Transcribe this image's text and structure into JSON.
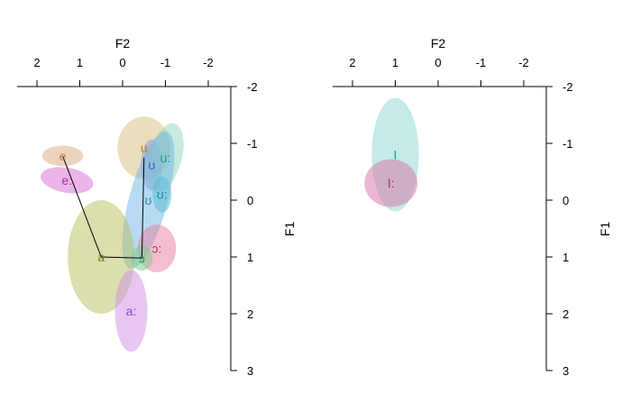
{
  "chart_data": [
    {
      "type": "scatter",
      "xlabel": "F2",
      "ylabel": "F1",
      "x_ticks": [
        "2",
        "1",
        "0",
        "-1",
        "-2"
      ],
      "y_ticks": [
        "-2",
        "-1",
        "0",
        "1",
        "2",
        "3"
      ],
      "x_range": [
        2.5,
        -2.5
      ],
      "y_range": [
        -2,
        3
      ],
      "vowels": [
        {
          "label": "e",
          "x": 1.4,
          "y": -0.78,
          "sx": 0.48,
          "sy": 0.18,
          "angle": 0,
          "color": "#d8a97e",
          "text_color": "#c07a3c"
        },
        {
          "label": "e:",
          "x": 1.3,
          "y": -0.35,
          "sx": 0.62,
          "sy": 0.22,
          "angle": 10,
          "color": "#d96bd3",
          "text_color": "#b32aa9"
        },
        {
          "label": "u",
          "x": -0.5,
          "y": -0.92,
          "sx": 0.62,
          "sy": 0.55,
          "angle": 0,
          "color": "#d6bf7a",
          "text_color": "#b08a10"
        },
        {
          "label": "ʊ",
          "x": -0.68,
          "y": -0.62,
          "sx": 0.25,
          "sy": 0.45,
          "angle": 0,
          "color": "#8c98e0",
          "text_color": "#4a58c8"
        },
        {
          "label": "u:",
          "x": -1.0,
          "y": -0.75,
          "sx": 0.38,
          "sy": 0.62,
          "angle": 15,
          "color": "#8fd6bf",
          "text_color": "#16a07a"
        },
        {
          "label": "ʊ:",
          "x": -0.92,
          "y": -0.1,
          "sx": 0.22,
          "sy": 0.32,
          "angle": 0,
          "color": "#40b8c4",
          "text_color": "#1590a0"
        },
        {
          "label": "ʊ",
          "x": -0.6,
          "y": 0.0,
          "sx": 0.45,
          "sy": 1.25,
          "angle": 15,
          "color": "#6fb6e6",
          "text_color": "#2a80c8"
        },
        {
          "label": "ɔ:",
          "x": -0.8,
          "y": 0.85,
          "sx": 0.45,
          "sy": 0.42,
          "angle": 0,
          "color": "#e87f9f",
          "text_color": "#c2305e"
        },
        {
          "label": "a",
          "x": 0.5,
          "y": 1.0,
          "sx": 0.78,
          "sy": 1.0,
          "angle": 0,
          "color": "#b9be5c",
          "text_color": "#6f7a10"
        },
        {
          "label": "ɔ",
          "x": -0.45,
          "y": 1.02,
          "sx": 0.25,
          "sy": 0.22,
          "angle": 0,
          "color": "#74d08a",
          "text_color": "#2a9a40"
        },
        {
          "label": "a:",
          "x": -0.2,
          "y": 1.95,
          "sx": 0.38,
          "sy": 0.72,
          "angle": 0,
          "color": "#cf8fe6",
          "text_color": "#9a3cc8"
        }
      ],
      "lines": [
        {
          "x": [
            1.4,
            0.5
          ],
          "y": [
            -0.78,
            1.0
          ]
        },
        {
          "x": [
            0.5,
            -0.45
          ],
          "y": [
            1.0,
            1.02
          ]
        },
        {
          "x": [
            -0.45,
            -0.5
          ],
          "y": [
            1.02,
            -0.75
          ]
        }
      ]
    },
    {
      "type": "scatter",
      "xlabel": "F2",
      "ylabel": "F1",
      "x_ticks": [
        "2",
        "1",
        "0",
        "-1",
        "-2"
      ],
      "y_ticks": [
        "-2",
        "-1",
        "0",
        "1",
        "2",
        "3"
      ],
      "x_range": [
        2.5,
        -2.5
      ],
      "y_range": [
        -2,
        3
      ],
      "vowels": [
        {
          "label": "I",
          "x": 1.0,
          "y": -0.8,
          "sx": 0.55,
          "sy": 1.0,
          "angle": 0,
          "color": "#8ad8d2",
          "text_color": "#1a9e92"
        },
        {
          "label": "I:",
          "x": 1.1,
          "y": -0.3,
          "sx": 0.62,
          "sy": 0.42,
          "angle": 0,
          "color": "#d86fa5",
          "text_color": "#b02a6a"
        }
      ],
      "lines": []
    }
  ]
}
